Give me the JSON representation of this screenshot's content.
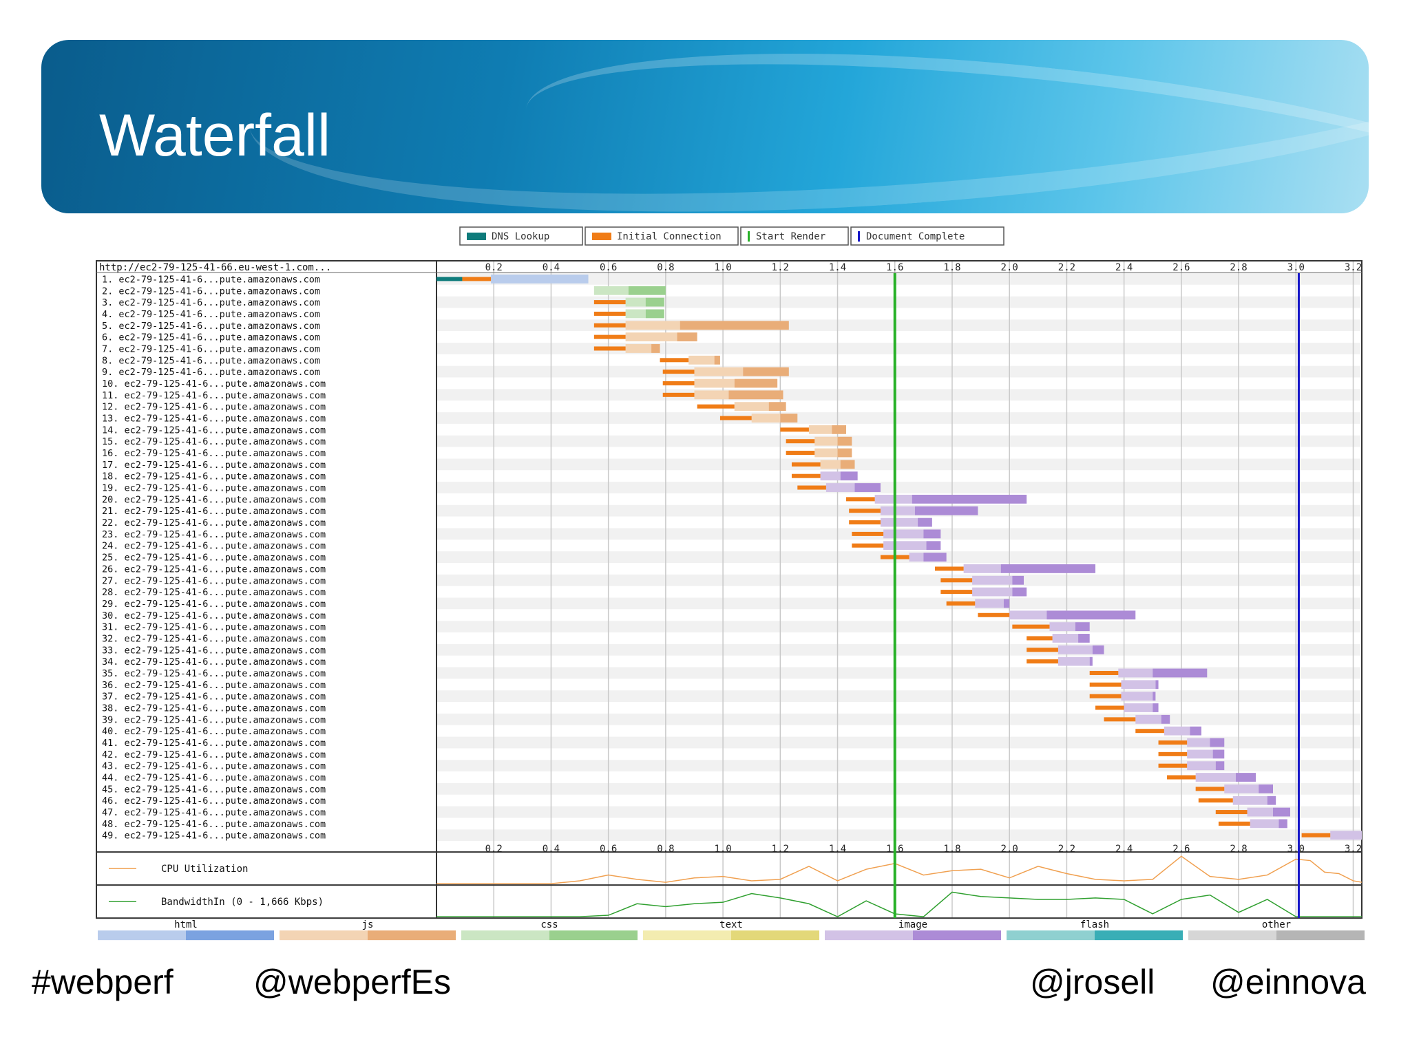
{
  "slide": {
    "title": "Waterfall",
    "footer": [
      "#webperf",
      "@webperfEs",
      "@jrosell",
      "@einnova"
    ]
  },
  "chart_data": {
    "type": "waterfall",
    "page_url": "http://ec2-79-125-41-66.eu-west-1.com...",
    "legend": [
      {
        "label": "DNS Lookup",
        "color": "#0e7b7b"
      },
      {
        "label": "Initial Connection",
        "color": "#f07c16"
      },
      {
        "label": "Start Render",
        "color": "#28b128"
      },
      {
        "label": "Document Complete",
        "color": "#1616c8"
      }
    ],
    "x_unit": "seconds",
    "x_ticks": [
      "0.2",
      "0.4",
      "0.6",
      "0.8",
      "1.0",
      "1.2",
      "1.4",
      "1.6",
      "1.8",
      "2.0",
      "2.2",
      "2.4",
      "2.6",
      "2.8",
      "3.0",
      "3.2"
    ],
    "xlim": [
      0,
      3.23
    ],
    "start_render": 1.6,
    "document_complete": 3.01,
    "content_types": [
      {
        "label": "html",
        "light": "#b9ccec",
        "dark": "#7ba2e0"
      },
      {
        "label": "js",
        "light": "#f3d4b4",
        "dark": "#e9ad78"
      },
      {
        "label": "css",
        "light": "#cbe6c3",
        "dark": "#9ad08e"
      },
      {
        "label": "text",
        "light": "#f3ecb0",
        "dark": "#e3d879"
      },
      {
        "label": "image",
        "light": "#d2c2e6",
        "dark": "#ac8bd6"
      },
      {
        "label": "flash",
        "light": "#8fd0d0",
        "dark": "#39aeb6"
      },
      {
        "label": "other",
        "light": "#d6d6d6",
        "dark": "#b5b5b5"
      }
    ],
    "requests": [
      {
        "label": "1.  ec2-79-125-41-6...pute.amazonaws.com",
        "type": "html",
        "dns": [
          0.0,
          0.09
        ],
        "connect": [
          0.09,
          0.19
        ],
        "ttfb": [
          0.19,
          0.53
        ],
        "download": [
          0.53,
          0.53
        ]
      },
      {
        "label": "2.  ec2-79-125-41-6...pute.amazonaws.com",
        "type": "css",
        "connect": null,
        "ttfb": [
          0.55,
          0.67
        ],
        "download": [
          0.67,
          0.8
        ]
      },
      {
        "label": "3.  ec2-79-125-41-6...pute.amazonaws.com",
        "type": "css",
        "connect": [
          0.55,
          0.66
        ],
        "ttfb": [
          0.66,
          0.73
        ],
        "download": [
          0.73,
          0.795
        ]
      },
      {
        "label": "4.  ec2-79-125-41-6...pute.amazonaws.com",
        "type": "css",
        "connect": [
          0.55,
          0.66
        ],
        "ttfb": [
          0.66,
          0.73
        ],
        "download": [
          0.73,
          0.795
        ]
      },
      {
        "label": "5.  ec2-79-125-41-6...pute.amazonaws.com",
        "type": "js",
        "connect": [
          0.55,
          0.66
        ],
        "ttfb": [
          0.66,
          0.85
        ],
        "download": [
          0.85,
          1.23
        ]
      },
      {
        "label": "6.  ec2-79-125-41-6...pute.amazonaws.com",
        "type": "js",
        "connect": [
          0.55,
          0.66
        ],
        "ttfb": [
          0.66,
          0.84
        ],
        "download": [
          0.84,
          0.91
        ]
      },
      {
        "label": "7.  ec2-79-125-41-6...pute.amazonaws.com",
        "type": "js",
        "connect": [
          0.55,
          0.66
        ],
        "ttfb": [
          0.66,
          0.75
        ],
        "download": [
          0.75,
          0.78
        ]
      },
      {
        "label": "8.  ec2-79-125-41-6...pute.amazonaws.com",
        "type": "js",
        "connect": [
          0.78,
          0.88
        ],
        "ttfb": [
          0.88,
          0.97
        ],
        "download": [
          0.97,
          0.99
        ]
      },
      {
        "label": "9.  ec2-79-125-41-6...pute.amazonaws.com",
        "type": "js",
        "connect": [
          0.79,
          0.9
        ],
        "ttfb": [
          0.9,
          1.07
        ],
        "download": [
          1.07,
          1.23
        ]
      },
      {
        "label": "10. ec2-79-125-41-6...pute.amazonaws.com",
        "type": "js",
        "connect": [
          0.79,
          0.9
        ],
        "ttfb": [
          0.9,
          1.04
        ],
        "download": [
          1.04,
          1.19
        ]
      },
      {
        "label": "11. ec2-79-125-41-6...pute.amazonaws.com",
        "type": "js",
        "connect": [
          0.79,
          0.9
        ],
        "ttfb": [
          0.9,
          1.02
        ],
        "download": [
          1.02,
          1.21
        ]
      },
      {
        "label": "12. ec2-79-125-41-6...pute.amazonaws.com",
        "type": "js",
        "connect": [
          0.91,
          1.04
        ],
        "ttfb": [
          1.04,
          1.16
        ],
        "download": [
          1.16,
          1.22
        ]
      },
      {
        "label": "13. ec2-79-125-41-6...pute.amazonaws.com",
        "type": "js",
        "connect": [
          0.99,
          1.1
        ],
        "ttfb": [
          1.1,
          1.2
        ],
        "download": [
          1.2,
          1.26
        ]
      },
      {
        "label": "14. ec2-79-125-41-6...pute.amazonaws.com",
        "type": "js",
        "connect": [
          1.2,
          1.3
        ],
        "ttfb": [
          1.3,
          1.38
        ],
        "download": [
          1.38,
          1.43
        ]
      },
      {
        "label": "15. ec2-79-125-41-6...pute.amazonaws.com",
        "type": "js",
        "connect": [
          1.22,
          1.32
        ],
        "ttfb": [
          1.32,
          1.4
        ],
        "download": [
          1.4,
          1.45
        ]
      },
      {
        "label": "16. ec2-79-125-41-6...pute.amazonaws.com",
        "type": "js",
        "connect": [
          1.22,
          1.32
        ],
        "ttfb": [
          1.32,
          1.4
        ],
        "download": [
          1.4,
          1.45
        ]
      },
      {
        "label": "17. ec2-79-125-41-6...pute.amazonaws.com",
        "type": "js",
        "connect": [
          1.24,
          1.34
        ],
        "ttfb": [
          1.34,
          1.41
        ],
        "download": [
          1.41,
          1.46
        ]
      },
      {
        "label": "18. ec2-79-125-41-6...pute.amazonaws.com",
        "type": "image",
        "connect": [
          1.24,
          1.34
        ],
        "ttfb": [
          1.34,
          1.41
        ],
        "download": [
          1.41,
          1.47
        ]
      },
      {
        "label": "19. ec2-79-125-41-6...pute.amazonaws.com",
        "type": "image",
        "connect": [
          1.26,
          1.36
        ],
        "ttfb": [
          1.36,
          1.46
        ],
        "download": [
          1.46,
          1.55
        ]
      },
      {
        "label": "20. ec2-79-125-41-6...pute.amazonaws.com",
        "type": "image",
        "connect": [
          1.43,
          1.53
        ],
        "ttfb": [
          1.53,
          1.66
        ],
        "download": [
          1.66,
          2.06
        ]
      },
      {
        "label": "21. ec2-79-125-41-6...pute.amazonaws.com",
        "type": "image",
        "connect": [
          1.44,
          1.55
        ],
        "ttfb": [
          1.55,
          1.67
        ],
        "download": [
          1.67,
          1.89
        ]
      },
      {
        "label": "22. ec2-79-125-41-6...pute.amazonaws.com",
        "type": "image",
        "connect": [
          1.44,
          1.55
        ],
        "ttfb": [
          1.55,
          1.68
        ],
        "download": [
          1.68,
          1.73
        ]
      },
      {
        "label": "23. ec2-79-125-41-6...pute.amazonaws.com",
        "type": "image",
        "connect": [
          1.45,
          1.56
        ],
        "ttfb": [
          1.56,
          1.7
        ],
        "download": [
          1.7,
          1.76
        ]
      },
      {
        "label": "24. ec2-79-125-41-6...pute.amazonaws.com",
        "type": "image",
        "connect": [
          1.45,
          1.56
        ],
        "ttfb": [
          1.56,
          1.71
        ],
        "download": [
          1.71,
          1.76
        ]
      },
      {
        "label": "25. ec2-79-125-41-6...pute.amazonaws.com",
        "type": "image",
        "connect": [
          1.55,
          1.65
        ],
        "ttfb": [
          1.65,
          1.7
        ],
        "download": [
          1.7,
          1.78
        ]
      },
      {
        "label": "26. ec2-79-125-41-6...pute.amazonaws.com",
        "type": "image",
        "connect": [
          1.74,
          1.84
        ],
        "ttfb": [
          1.84,
          1.97
        ],
        "download": [
          1.97,
          2.3
        ]
      },
      {
        "label": "27. ec2-79-125-41-6...pute.amazonaws.com",
        "type": "image",
        "connect": [
          1.76,
          1.87
        ],
        "ttfb": [
          1.87,
          2.01
        ],
        "download": [
          2.01,
          2.05
        ]
      },
      {
        "label": "28. ec2-79-125-41-6...pute.amazonaws.com",
        "type": "image",
        "connect": [
          1.76,
          1.87
        ],
        "ttfb": [
          1.87,
          2.01
        ],
        "download": [
          2.01,
          2.06
        ]
      },
      {
        "label": "29. ec2-79-125-41-6...pute.amazonaws.com",
        "type": "image",
        "connect": [
          1.78,
          1.88
        ],
        "ttfb": [
          1.88,
          1.98
        ],
        "download": [
          1.98,
          2.0
        ]
      },
      {
        "label": "30. ec2-79-125-41-6...pute.amazonaws.com",
        "type": "image",
        "connect": [
          1.89,
          2.0
        ],
        "ttfb": [
          2.0,
          2.13
        ],
        "download": [
          2.13,
          2.44
        ]
      },
      {
        "label": "31. ec2-79-125-41-6...pute.amazonaws.com",
        "type": "image",
        "connect": [
          2.01,
          2.14
        ],
        "ttfb": [
          2.14,
          2.23
        ],
        "download": [
          2.23,
          2.28
        ]
      },
      {
        "label": "32. ec2-79-125-41-6...pute.amazonaws.com",
        "type": "image",
        "connect": [
          2.06,
          2.15
        ],
        "ttfb": [
          2.15,
          2.24
        ],
        "download": [
          2.24,
          2.28
        ]
      },
      {
        "label": "33. ec2-79-125-41-6...pute.amazonaws.com",
        "type": "image",
        "connect": [
          2.06,
          2.17
        ],
        "ttfb": [
          2.17,
          2.29
        ],
        "download": [
          2.29,
          2.33
        ]
      },
      {
        "label": "34. ec2-79-125-41-6...pute.amazonaws.com",
        "type": "image",
        "connect": [
          2.06,
          2.17
        ],
        "ttfb": [
          2.17,
          2.28
        ],
        "download": [
          2.28,
          2.29
        ]
      },
      {
        "label": "35. ec2-79-125-41-6...pute.amazonaws.com",
        "type": "image",
        "connect": [
          2.28,
          2.38
        ],
        "ttfb": [
          2.38,
          2.5
        ],
        "download": [
          2.5,
          2.69
        ]
      },
      {
        "label": "36. ec2-79-125-41-6...pute.amazonaws.com",
        "type": "image",
        "connect": [
          2.28,
          2.39
        ],
        "ttfb": [
          2.39,
          2.51
        ],
        "download": [
          2.51,
          2.52
        ]
      },
      {
        "label": "37. ec2-79-125-41-6...pute.amazonaws.com",
        "type": "image",
        "connect": [
          2.28,
          2.39
        ],
        "ttfb": [
          2.39,
          2.5
        ],
        "download": [
          2.5,
          2.51
        ]
      },
      {
        "label": "38. ec2-79-125-41-6...pute.amazonaws.com",
        "type": "image",
        "connect": [
          2.3,
          2.4
        ],
        "ttfb": [
          2.4,
          2.5
        ],
        "download": [
          2.5,
          2.52
        ]
      },
      {
        "label": "39. ec2-79-125-41-6...pute.amazonaws.com",
        "type": "image",
        "connect": [
          2.33,
          2.44
        ],
        "ttfb": [
          2.44,
          2.53
        ],
        "download": [
          2.53,
          2.56
        ]
      },
      {
        "label": "40. ec2-79-125-41-6...pute.amazonaws.com",
        "type": "image",
        "connect": [
          2.44,
          2.54
        ],
        "ttfb": [
          2.54,
          2.63
        ],
        "download": [
          2.63,
          2.67
        ]
      },
      {
        "label": "41. ec2-79-125-41-6...pute.amazonaws.com",
        "type": "image",
        "connect": [
          2.52,
          2.62
        ],
        "ttfb": [
          2.62,
          2.7
        ],
        "download": [
          2.7,
          2.75
        ]
      },
      {
        "label": "42. ec2-79-125-41-6...pute.amazonaws.com",
        "type": "image",
        "connect": [
          2.52,
          2.62
        ],
        "ttfb": [
          2.62,
          2.71
        ],
        "download": [
          2.71,
          2.75
        ]
      },
      {
        "label": "43. ec2-79-125-41-6...pute.amazonaws.com",
        "type": "image",
        "connect": [
          2.52,
          2.62
        ],
        "ttfb": [
          2.62,
          2.72
        ],
        "download": [
          2.72,
          2.75
        ]
      },
      {
        "label": "44. ec2-79-125-41-6...pute.amazonaws.com",
        "type": "image",
        "connect": [
          2.55,
          2.65
        ],
        "ttfb": [
          2.65,
          2.79
        ],
        "download": [
          2.79,
          2.86
        ]
      },
      {
        "label": "45. ec2-79-125-41-6...pute.amazonaws.com",
        "type": "image",
        "connect": [
          2.65,
          2.75
        ],
        "ttfb": [
          2.75,
          2.87
        ],
        "download": [
          2.87,
          2.92
        ]
      },
      {
        "label": "46. ec2-79-125-41-6...pute.amazonaws.com",
        "type": "image",
        "connect": [
          2.66,
          2.78
        ],
        "ttfb": [
          2.78,
          2.9
        ],
        "download": [
          2.9,
          2.93
        ]
      },
      {
        "label": "47. ec2-79-125-41-6...pute.amazonaws.com",
        "type": "image",
        "connect": [
          2.72,
          2.83
        ],
        "ttfb": [
          2.83,
          2.92
        ],
        "download": [
          2.92,
          2.98
        ]
      },
      {
        "label": "48. ec2-79-125-41-6...pute.amazonaws.com",
        "type": "image",
        "connect": [
          2.73,
          2.84
        ],
        "ttfb": [
          2.84,
          2.94
        ],
        "download": [
          2.94,
          2.97
        ]
      },
      {
        "label": "49. ec2-79-125-41-6...pute.amazonaws.com",
        "type": "image",
        "connect": [
          3.02,
          3.12
        ],
        "ttfb": [
          3.12,
          3.23
        ],
        "download": [
          3.23,
          3.23
        ]
      }
    ],
    "cpu": {
      "label": "CPU Utilization",
      "x": [
        0.0,
        0.2,
        0.4,
        0.5,
        0.6,
        0.7,
        0.8,
        0.9,
        1.0,
        1.1,
        1.2,
        1.3,
        1.4,
        1.5,
        1.6,
        1.7,
        1.8,
        1.9,
        2.0,
        2.1,
        2.2,
        2.3,
        2.4,
        2.5,
        2.6,
        2.7,
        2.8,
        2.9,
        3.0,
        3.05,
        3.1,
        3.15,
        3.2,
        3.23
      ],
      "y": [
        0,
        0,
        0,
        10,
        30,
        15,
        5,
        20,
        25,
        10,
        15,
        60,
        10,
        50,
        70,
        30,
        45,
        50,
        20,
        60,
        35,
        15,
        10,
        15,
        95,
        25,
        15,
        30,
        85,
        80,
        40,
        35,
        10,
        5
      ]
    },
    "bandwidth": {
      "label": "BandwidthIn (0 - 1,666 Kbps)",
      "x": [
        0.0,
        0.2,
        0.4,
        0.5,
        0.6,
        0.7,
        0.8,
        0.9,
        1.0,
        1.1,
        1.2,
        1.3,
        1.4,
        1.5,
        1.6,
        1.7,
        1.8,
        1.9,
        2.0,
        2.1,
        2.2,
        2.3,
        2.4,
        2.5,
        2.6,
        2.7,
        2.8,
        2.9,
        3.0,
        3.05,
        3.23
      ],
      "y": [
        0,
        0,
        0,
        0,
        5,
        45,
        35,
        45,
        50,
        80,
        65,
        45,
        0,
        55,
        10,
        0,
        85,
        70,
        65,
        60,
        60,
        65,
        60,
        10,
        60,
        75,
        15,
        60,
        0,
        0,
        0
      ]
    }
  }
}
